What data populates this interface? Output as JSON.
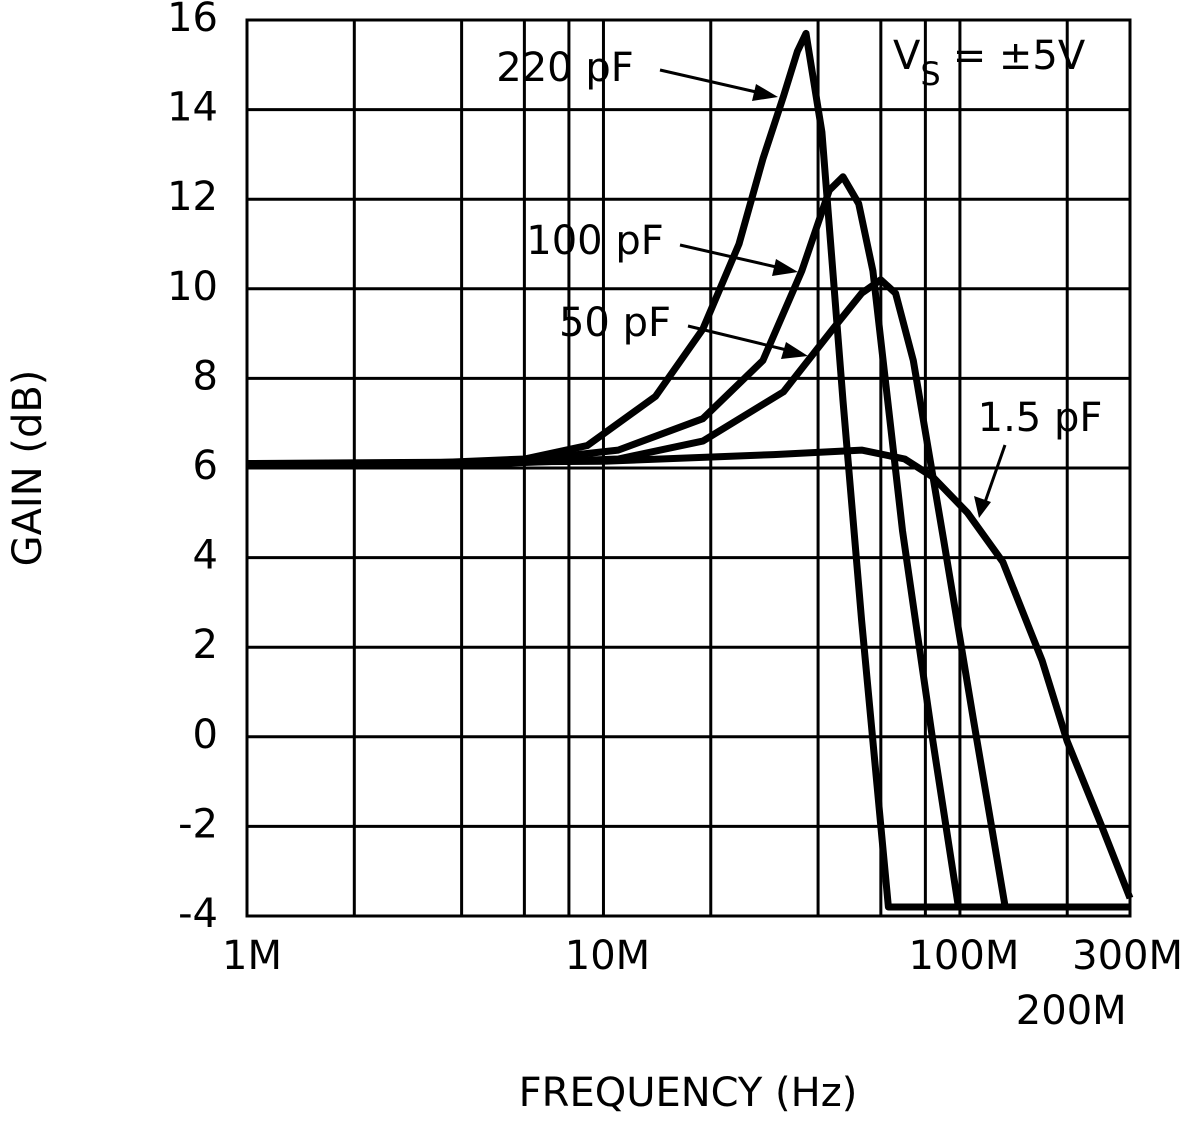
{
  "chart_data": {
    "type": "line",
    "x_scale": "log",
    "xlabel": "FREQUENCY (Hz)",
    "ylabel": "GAIN (dB)",
    "annotation": {
      "main": "V",
      "subscript": "S",
      "suffix": "= ±5V"
    },
    "xlim": [
      1000000,
      300000000
    ],
    "ylim": [
      -4,
      16
    ],
    "xticks": [
      {
        "value": 1000000,
        "label": "1M"
      },
      {
        "value": 10000000,
        "label": "10M"
      },
      {
        "value": 100000000,
        "label": "100M"
      },
      {
        "value": 200000000,
        "label": "200M"
      },
      {
        "value": 300000000,
        "label": "300M"
      }
    ],
    "xgrid": [
      2000000,
      4000000,
      6000000,
      8000000,
      20000000,
      40000000,
      60000000,
      80000000
    ],
    "yticks": [
      -4,
      -2,
      0,
      2,
      4,
      6,
      8,
      10,
      12,
      14,
      16
    ],
    "grid": true,
    "series": [
      {
        "name": "220 pF",
        "color": "#000000",
        "x": [
          1000000,
          3000000,
          6000000,
          9000000,
          14000000,
          19000000,
          24000000,
          28000000,
          32000000,
          35000000,
          37000000,
          41000000,
          47000000,
          53000000,
          63000000,
          300000000
        ],
        "values": [
          6.1,
          6.1,
          6.2,
          6.5,
          7.6,
          9.1,
          11,
          12.9,
          14.3,
          15.3,
          15.7,
          13.5,
          7.5,
          2.6,
          -3.8,
          -3.8
        ]
      },
      {
        "name": "100 pF",
        "color": "#000000",
        "x": [
          1000000,
          5000000,
          11000000,
          19000000,
          28000000,
          36000000,
          43000000,
          47000000,
          52000000,
          57000000,
          69000000,
          84000000,
          99000000,
          300000000
        ],
        "values": [
          6.1,
          6.1,
          6.4,
          7.1,
          8.4,
          10.4,
          12.2,
          12.5,
          11.9,
          10.4,
          4.6,
          -0.1,
          -3.8,
          -3.8
        ]
      },
      {
        "name": "50 pF",
        "color": "#000000",
        "x": [
          1000000,
          5000000,
          11000000,
          19000000,
          32000000,
          44000000,
          53000000,
          60000000,
          66000000,
          74000000,
          90000000,
          109000000,
          134000000,
          300000000
        ],
        "values": [
          6.1,
          6.1,
          6.2,
          6.6,
          7.7,
          9.1,
          9.9,
          10.2,
          9.9,
          8.4,
          4.4,
          0.4,
          -3.8,
          -3.8
        ]
      },
      {
        "name": "1.5 pF",
        "color": "#000000",
        "x": [
          1000000,
          10000000,
          30000000,
          53000000,
          70000000,
          84000000,
          105000000,
          132000000,
          170000000,
          200000000,
          250000000,
          300000000
        ],
        "values": [
          6.1,
          6.15,
          6.3,
          6.4,
          6.2,
          5.8,
          5.0,
          3.9,
          1.7,
          -0.1,
          -2.0,
          -3.6
        ]
      }
    ]
  }
}
